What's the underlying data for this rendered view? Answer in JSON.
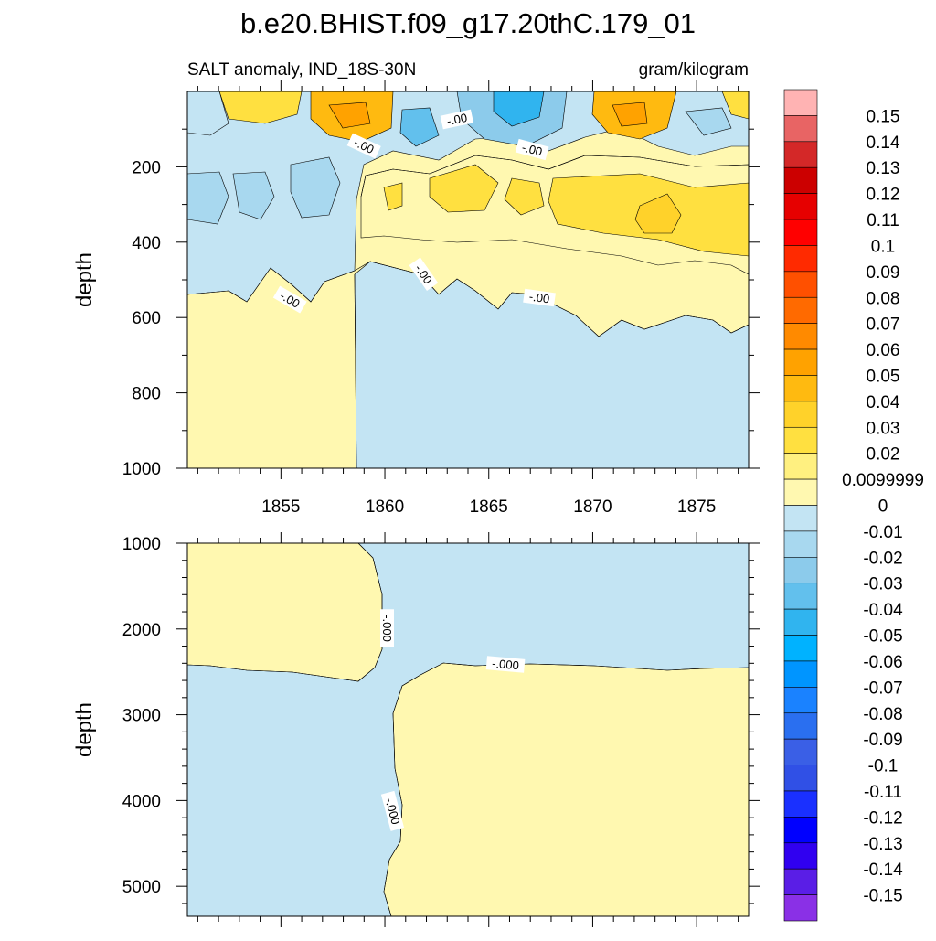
{
  "chart_data": [
    {
      "type": "heatmap",
      "title": "b.e20.BHIST.f09_g17.20thC.179_01",
      "subtitle_left": "SALT anomaly, IND_18S-30N",
      "subtitle_right": "gram/kilogram",
      "xlabel": "",
      "ylabel": "depth",
      "xlim": [
        1850.5,
        1877.5
      ],
      "ylim": [
        1000,
        0
      ],
      "x_ticks": [
        1855,
        1860,
        1865,
        1870,
        1875
      ],
      "y_ticks": [
        200,
        400,
        600,
        800,
        1000
      ],
      "contour_labels": [
        "-.00",
        "-.00",
        "-.00",
        "-.00",
        "-.00",
        "-.00"
      ]
    },
    {
      "type": "heatmap",
      "xlabel": "",
      "ylabel": "depth",
      "xlim": [
        1850.5,
        1877.5
      ],
      "ylim": [
        5350,
        1000
      ],
      "y_ticks": [
        1000,
        2000,
        3000,
        4000,
        5000
      ],
      "contour_labels": [
        "-.000",
        "-.000",
        "-.000"
      ]
    }
  ],
  "colorbar": {
    "labels": [
      "0.15",
      "0.14",
      "0.13",
      "0.12",
      "0.11",
      "0.1",
      "0.09",
      "0.08",
      "0.07",
      "0.06",
      "0.05",
      "0.04",
      "0.03",
      "0.02",
      "0.0099999",
      "0",
      "-0.01",
      "-0.02",
      "-0.03",
      "-0.04",
      "-0.05",
      "-0.06",
      "-0.07",
      "-0.08",
      "-0.09",
      "-0.1",
      "-0.11",
      "-0.12",
      "-0.13",
      "-0.14",
      "-0.15"
    ],
    "colors": [
      "#ffb3b3",
      "#e86464",
      "#d42828",
      "#cc0000",
      "#e60000",
      "#ff0000",
      "#ff2a00",
      "#ff5000",
      "#ff6a00",
      "#ff8a00",
      "#ffa200",
      "#ffba10",
      "#ffd22a",
      "#ffe040",
      "#fff080",
      "#fff8b0",
      "#c3e4f3",
      "#a8d8ef",
      "#8ccbeb",
      "#62c0ed",
      "#30b4ef",
      "#00b2ff",
      "#0095ff",
      "#1a82ff",
      "#2a6ff0",
      "#3a5fe6",
      "#3050e6",
      "#1a30ff",
      "#0000ff",
      "#3000f0",
      "#5a1ee6",
      "#8a30e6"
    ]
  }
}
